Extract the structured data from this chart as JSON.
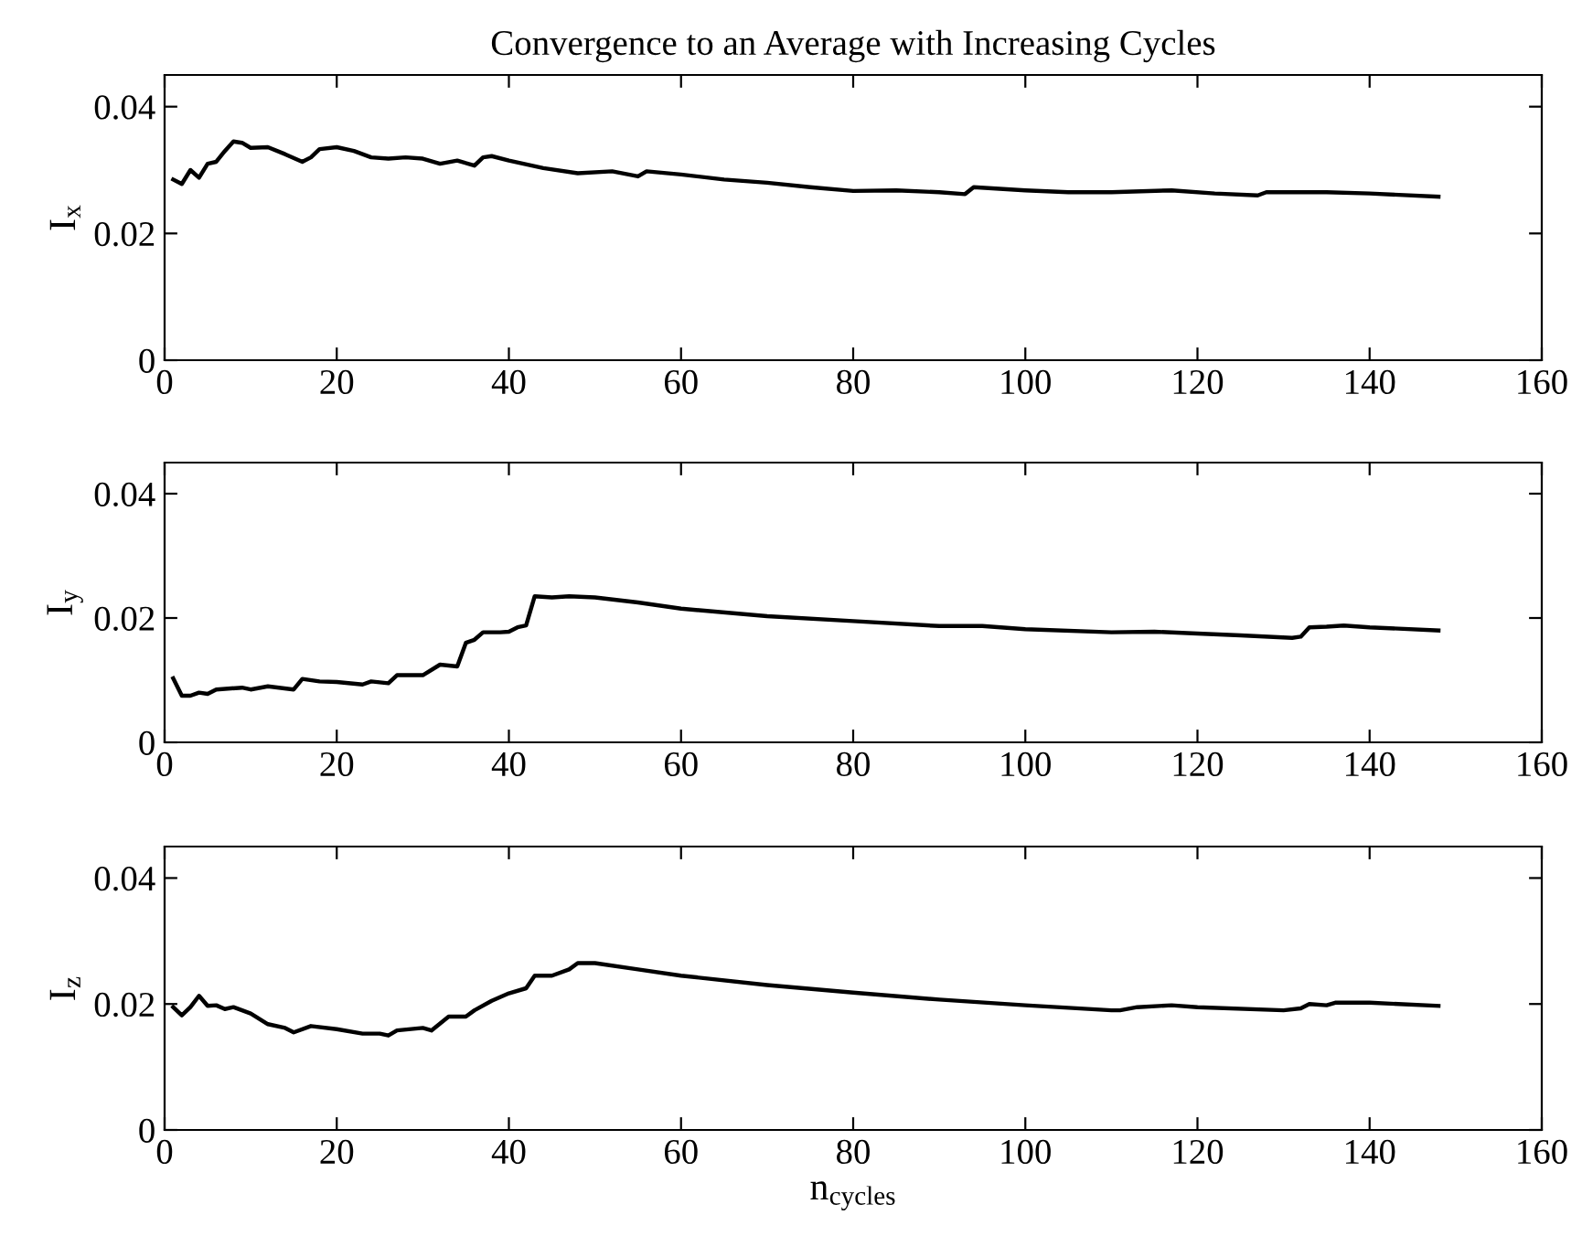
{
  "chart_data": [
    {
      "type": "line",
      "title": "Convergence to an Average with Increasing Cycles",
      "ylabel": "I$_{x}$",
      "xlim": [
        0,
        160
      ],
      "xticks": [
        0,
        20,
        40,
        60,
        80,
        100,
        120,
        140,
        160
      ],
      "ylim": [
        0,
        0.045
      ],
      "yticks": [
        0,
        0.02,
        0.04
      ],
      "grid": false,
      "series": [
        {
          "color": "#000000",
          "x": [
            1,
            2,
            3,
            4,
            5,
            6,
            7,
            8,
            9,
            10,
            12,
            14,
            16,
            17,
            18,
            20,
            22,
            24,
            26,
            28,
            30,
            32,
            34,
            36,
            37,
            38,
            40,
            44,
            48,
            52,
            55,
            56,
            60,
            65,
            70,
            75,
            80,
            85,
            90,
            93,
            94,
            100,
            105,
            110,
            117,
            122,
            127,
            128,
            135,
            140,
            148
          ],
          "values": [
            0.0285,
            0.0278,
            0.03,
            0.0288,
            0.031,
            0.0313,
            0.033,
            0.0345,
            0.0343,
            0.0335,
            0.0336,
            0.0325,
            0.0313,
            0.032,
            0.0333,
            0.0336,
            0.033,
            0.032,
            0.0318,
            0.032,
            0.0318,
            0.031,
            0.0315,
            0.0307,
            0.032,
            0.0322,
            0.0315,
            0.0303,
            0.0295,
            0.0298,
            0.029,
            0.0298,
            0.0293,
            0.0285,
            0.028,
            0.0273,
            0.0267,
            0.0268,
            0.0265,
            0.0262,
            0.0273,
            0.0268,
            0.0265,
            0.0265,
            0.0268,
            0.0263,
            0.026,
            0.0265,
            0.0265,
            0.0263,
            0.0258
          ]
        }
      ]
    },
    {
      "type": "line",
      "ylabel": "I$_{y}$",
      "xlim": [
        0,
        160
      ],
      "xticks": [
        0,
        20,
        40,
        60,
        80,
        100,
        120,
        140,
        160
      ],
      "ylim": [
        0,
        0.045
      ],
      "yticks": [
        0,
        0.02,
        0.04
      ],
      "grid": false,
      "series": [
        {
          "color": "#000000",
          "x": [
            1,
            2,
            3,
            4,
            5,
            6,
            9,
            10,
            12,
            15,
            16,
            18,
            20,
            23,
            24,
            26,
            27,
            30,
            32,
            34,
            35,
            36,
            37,
            39,
            40,
            41,
            42,
            43,
            45,
            47,
            50,
            55,
            60,
            70,
            80,
            90,
            95,
            100,
            110,
            115,
            120,
            125,
            131,
            132,
            133,
            135,
            137,
            140,
            148
          ],
          "values": [
            0.0103,
            0.0075,
            0.0075,
            0.008,
            0.0078,
            0.0085,
            0.0088,
            0.0085,
            0.009,
            0.0085,
            0.0102,
            0.0098,
            0.0097,
            0.0093,
            0.0098,
            0.0095,
            0.0108,
            0.0108,
            0.0125,
            0.0122,
            0.016,
            0.0165,
            0.0177,
            0.0177,
            0.0178,
            0.0185,
            0.0188,
            0.0235,
            0.0233,
            0.0235,
            0.0233,
            0.0225,
            0.0215,
            0.0203,
            0.0195,
            0.0187,
            0.0187,
            0.0182,
            0.0177,
            0.0178,
            0.0175,
            0.0172,
            0.0168,
            0.017,
            0.0185,
            0.0186,
            0.0188,
            0.0185,
            0.018
          ]
        }
      ]
    },
    {
      "type": "line",
      "ylabel": "I$_{z}$",
      "xlabel": "n$_{cycles}$",
      "xlim": [
        0,
        160
      ],
      "xticks": [
        0,
        20,
        40,
        60,
        80,
        100,
        120,
        140,
        160
      ],
      "ylim": [
        0,
        0.045
      ],
      "yticks": [
        0,
        0.02,
        0.04
      ],
      "grid": false,
      "series": [
        {
          "color": "#000000",
          "x": [
            1,
            2,
            3,
            4,
            5,
            6,
            7,
            8,
            10,
            12,
            14,
            15,
            17,
            20,
            23,
            25,
            26,
            27,
            30,
            31,
            33,
            35,
            36,
            38,
            40,
            42,
            43,
            45,
            47,
            48,
            50,
            55,
            60,
            70,
            80,
            90,
            100,
            110,
            111,
            113,
            117,
            120,
            130,
            132,
            133,
            135,
            136,
            140,
            148
          ],
          "values": [
            0.0195,
            0.0182,
            0.0195,
            0.0213,
            0.0197,
            0.0198,
            0.0192,
            0.0195,
            0.0185,
            0.0168,
            0.0162,
            0.0155,
            0.0165,
            0.016,
            0.0153,
            0.0153,
            0.015,
            0.0158,
            0.0162,
            0.0158,
            0.018,
            0.018,
            0.019,
            0.0205,
            0.0217,
            0.0225,
            0.0245,
            0.0245,
            0.0255,
            0.0265,
            0.0265,
            0.0255,
            0.0245,
            0.023,
            0.0218,
            0.0207,
            0.0198,
            0.019,
            0.019,
            0.0195,
            0.0198,
            0.0195,
            0.019,
            0.0193,
            0.02,
            0.0198,
            0.0202,
            0.0202,
            0.0197
          ]
        }
      ]
    }
  ]
}
